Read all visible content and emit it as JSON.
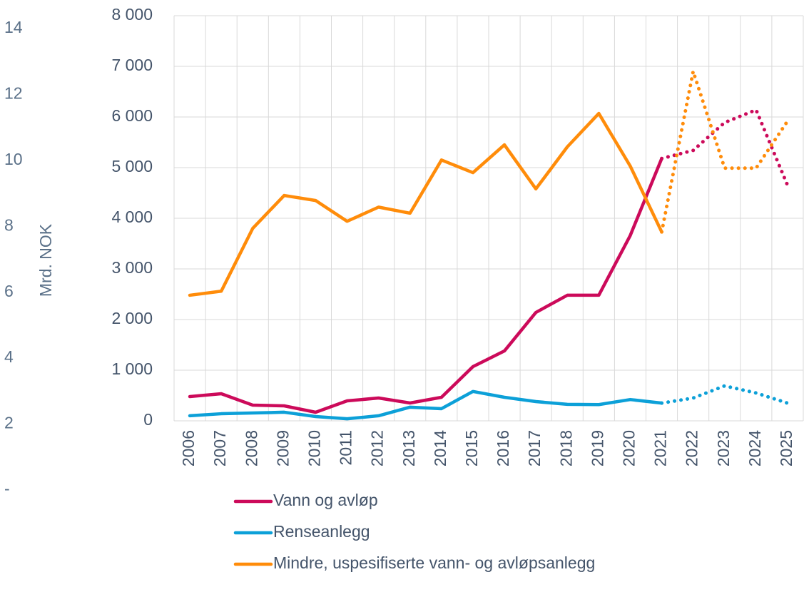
{
  "chart_data": {
    "type": "line",
    "y_label": "Mrd. NOK",
    "categories": [
      "2006",
      "2007",
      "2008",
      "2009",
      "2010",
      "2011",
      "2012",
      "2013",
      "2014",
      "2015",
      "2016",
      "2017",
      "2018",
      "2019",
      "2020",
      "2021",
      "2022",
      "2023",
      "2024",
      "2025"
    ],
    "dotted_from_category": "2021",
    "series": [
      {
        "name": "Vann og avløp",
        "color": "#cc0a5a",
        "values": [
          479,
          535,
          310,
          296,
          169,
          394,
          451,
          352,
          465,
          1070,
          1380,
          2140,
          2480,
          2480,
          3660,
          5180,
          5340,
          5890,
          6140,
          4650
        ]
      },
      {
        "name": "Renseanlegg",
        "color": "#0ca0d8",
        "values": [
          100,
          140,
          155,
          170,
          85,
          40,
          100,
          270,
          240,
          580,
          465,
          380,
          325,
          320,
          420,
          350,
          450,
          690,
          550,
          350
        ]
      },
      {
        "name": "Mindre, uspesifiserte vann- og avløpsanlegg",
        "color": "#ff8c0a",
        "values": [
          2480,
          2560,
          3800,
          4450,
          4350,
          3940,
          4220,
          4100,
          5150,
          4900,
          5450,
          4580,
          5410,
          6070,
          5030,
          3730,
          6900,
          4990,
          4990,
          5920
        ]
      }
    ],
    "ylim": [
      0,
      8000
    ],
    "yticks": [
      0,
      {
        "value": 1000,
        "label": "1 000"
      },
      {
        "value": 2000,
        "label": "2 000"
      },
      {
        "value": 3000,
        "label": "3 000"
      },
      {
        "value": 4000,
        "label": "4 000"
      },
      {
        "value": 5000,
        "label": "5 000"
      },
      {
        "value": 6000,
        "label": "6 000"
      },
      {
        "value": 7000,
        "label": "7 000"
      },
      {
        "value": 8000,
        "label": "8 000"
      }
    ],
    "y2lim": [
      0,
      14
    ],
    "y2ticks": [
      {
        "value": 0,
        "label": "-"
      },
      2,
      4,
      6,
      8,
      10,
      12,
      14
    ],
    "grid": true
  }
}
